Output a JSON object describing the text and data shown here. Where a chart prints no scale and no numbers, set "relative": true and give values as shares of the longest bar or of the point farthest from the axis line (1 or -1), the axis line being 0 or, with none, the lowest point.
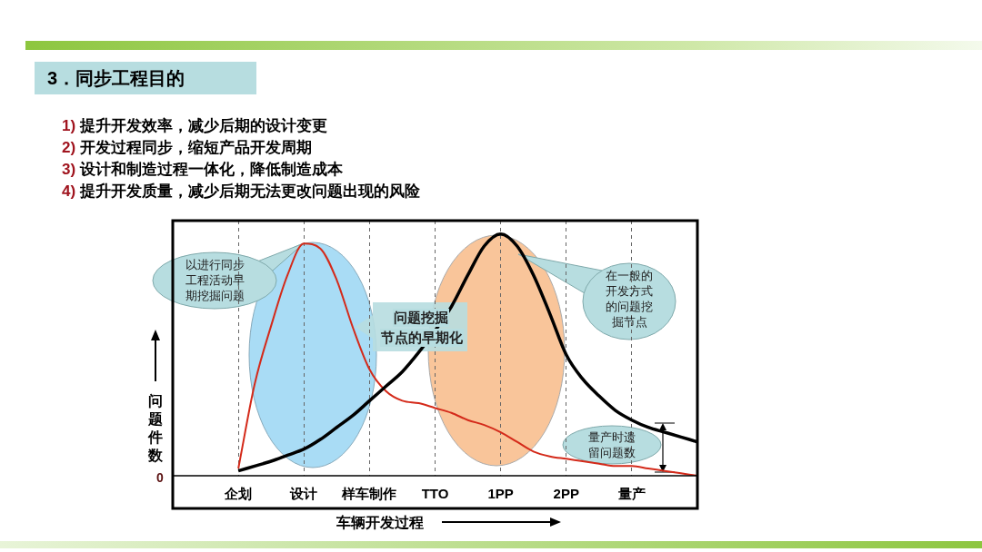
{
  "chart_data": {
    "type": "line",
    "title": "3．同步工程目的",
    "xlabel": "车辆开发过程",
    "ylabel": "问题件数",
    "relative": true,
    "marker": "none",
    "grid": "x",
    "categories": [
      null,
      null,
      null,
      null,
      "企划",
      null,
      null,
      null,
      "设计",
      null,
      null,
      null,
      "样车制作",
      null,
      null,
      null,
      "TTO",
      null,
      null,
      null,
      "1PP",
      null,
      null,
      null,
      "2PP",
      null,
      null,
      null,
      "量产",
      null,
      null,
      null,
      null
    ],
    "series": [
      {
        "color": "#000000",
        "values": [
          null,
          null,
          null,
          null,
          0.02,
          0.04,
          0.06,
          0.085,
          0.11,
          0.15,
          0.2,
          0.25,
          0.31,
          0.37,
          0.43,
          0.51,
          0.6,
          0.7,
          0.83,
          0.95,
          1,
          0.95,
          0.83,
          0.67,
          0.5,
          0.4,
          0.33,
          0.27,
          0.23,
          0.2,
          0.18,
          0.16,
          0.14
        ]
      },
      {
        "color": "#d42a1a",
        "values": [
          null,
          null,
          null,
          null,
          0.03,
          0.38,
          0.62,
          0.83,
          0.96,
          0.94,
          0.81,
          0.61,
          0.44,
          0.35,
          0.31,
          0.3,
          0.28,
          0.26,
          0.23,
          0.21,
          0.18,
          0.14,
          0.1,
          0.08,
          0.07,
          0.06,
          0.05,
          0.04,
          0.04,
          0.03,
          0.02,
          0.01,
          0
        ]
      }
    ],
    "annotations": [
      "1) 提升开发效率，减少后期的设计变更",
      "2) 开发过程同步，缩短产品开发周期",
      "3) 设计和制造过程一体化，降低制造成本",
      "4) 提升开发质量，减少后期无法更改问题出现的风险",
      "0",
      "以进行同步工程活动早期挖掘问题",
      "问题挖掘",
      "节点的早期化",
      "在一般的开发方式的问题挖掘节点",
      "量产时遗留问题数"
    ]
  }
}
